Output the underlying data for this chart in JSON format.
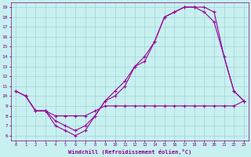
{
  "xlabel": "Windchill (Refroidissement éolien,°C)",
  "background_color": "#c8f0f0",
  "grid_color": "#a8d8d8",
  "line_color": "#990099",
  "xlim": [
    -0.5,
    23.5
  ],
  "ylim": [
    5.5,
    19.5
  ],
  "yticks": [
    6,
    7,
    8,
    9,
    10,
    11,
    12,
    13,
    14,
    15,
    16,
    17,
    18,
    19
  ],
  "xticks": [
    0,
    1,
    2,
    3,
    4,
    5,
    6,
    7,
    8,
    9,
    10,
    11,
    12,
    13,
    14,
    15,
    16,
    17,
    18,
    19,
    20,
    21,
    22,
    23
  ],
  "line1_x": [
    0,
    1,
    2,
    3,
    4,
    5,
    6,
    7,
    8,
    9,
    10,
    11,
    12,
    13,
    14,
    15,
    16,
    17,
    18,
    19,
    20,
    22,
    23
  ],
  "line1_y": [
    10.5,
    10,
    8.5,
    8.5,
    7.5,
    7.0,
    6.5,
    7.0,
    8.0,
    9.5,
    10.5,
    11.5,
    13.0,
    14.0,
    15.5,
    18.0,
    18.5,
    19.0,
    19.0,
    18.5,
    17.5,
    10.5,
    9.5
  ],
  "line2_x": [
    0,
    1,
    2,
    3,
    4,
    5,
    6,
    7,
    8,
    9,
    10,
    11,
    12,
    13,
    14,
    15,
    16,
    17,
    18,
    19,
    20,
    21,
    22,
    23
  ],
  "line2_y": [
    10.5,
    10.0,
    8.5,
    8.5,
    8.0,
    8.0,
    8.0,
    8.0,
    8.5,
    9.0,
    9.0,
    9.0,
    9.0,
    9.0,
    9.0,
    9.0,
    9.0,
    9.0,
    9.0,
    9.0,
    9.0,
    9.0,
    9.0,
    9.5
  ],
  "line3_x": [
    1,
    2,
    3,
    4,
    5,
    6,
    7,
    8,
    9,
    10,
    11,
    12,
    13,
    14,
    15,
    16,
    17,
    18,
    19,
    20,
    21,
    22,
    23
  ],
  "line3_y": [
    10.0,
    8.5,
    8.5,
    7.0,
    6.5,
    6.0,
    6.5,
    8.0,
    9.5,
    10.0,
    11.0,
    13.0,
    13.5,
    15.5,
    18.0,
    18.5,
    19.0,
    19.0,
    19.0,
    18.5,
    14.0,
    10.5,
    9.5
  ]
}
